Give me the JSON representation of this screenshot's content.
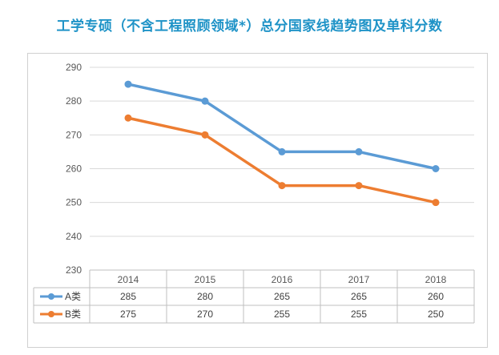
{
  "title": "工学专硕（不含工程照顾领域*）总分国家线趋势图及单科分数",
  "chart_data": {
    "type": "line",
    "categories": [
      "2014",
      "2015",
      "2016",
      "2017",
      "2018"
    ],
    "series": [
      {
        "name": "A类",
        "values": [
          285,
          280,
          265,
          265,
          260
        ],
        "color": "#5b9bd5"
      },
      {
        "name": "B类",
        "values": [
          275,
          270,
          255,
          255,
          250
        ],
        "color": "#ed7d31"
      }
    ],
    "ylim": [
      230,
      290
    ],
    "yticks": [
      230,
      240,
      250,
      260,
      270,
      280,
      290
    ],
    "grid": true,
    "legend": "data-table",
    "title": "工学专硕（不含工程照顾领域*）总分国家线趋势图及单科分数",
    "xlabel": "",
    "ylabel": ""
  }
}
